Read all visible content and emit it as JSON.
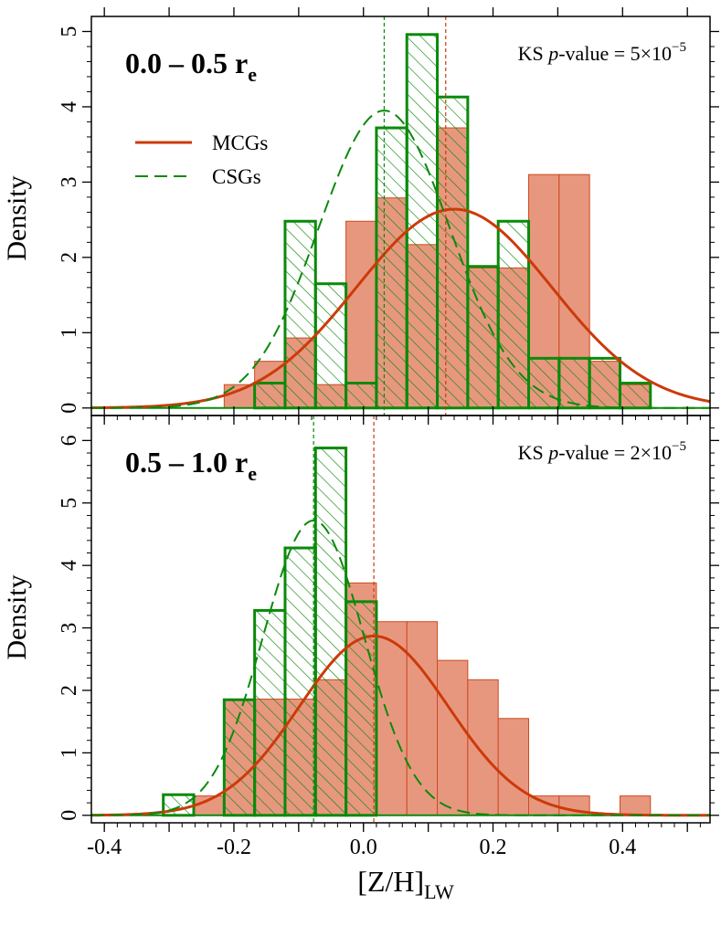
{
  "colors": {
    "mcg_fill": "#e8977f",
    "mcg_edge": "#cc4a1e",
    "mcg_curve": "#cc3a0a",
    "csg": "#0a8a0a"
  },
  "x_axis": {
    "label": "[Z/H]",
    "label_sub": "LW",
    "range": [
      -0.42,
      0.535
    ],
    "ticks": [
      -0.4,
      -0.2,
      0.0,
      0.2,
      0.4
    ],
    "tick_labels": [
      "-0.4",
      "-0.2",
      "0.0",
      "0.2",
      "0.4"
    ]
  },
  "legend": {
    "position": "upper-left",
    "entries": [
      {
        "label": "MCGs",
        "style": "solid"
      },
      {
        "label": "CSGs",
        "style": "dashed"
      }
    ]
  },
  "chart_data": [
    {
      "type": "histogram",
      "panel_title": "0.0 – 0.5 r",
      "panel_title_sub": "e",
      "ks_text": "KS ",
      "ks_p": "p",
      "ks_value": "-value = 5×10",
      "ks_exp": "−5",
      "ylabel": "Density",
      "ylim": [
        -0.1,
        5.2
      ],
      "yticks": [
        0,
        1,
        2,
        3,
        4,
        5
      ],
      "ytick_labels": [
        "0",
        "1",
        "2",
        "3",
        "4",
        "5"
      ],
      "bin_width": 0.047,
      "series": [
        {
          "name": "MCGs",
          "bin_start": -0.215,
          "values": [
            0.31,
            0.62,
            0.93,
            0.31,
            2.48,
            2.79,
            2.17,
            3.72,
            1.86,
            1.86,
            3.1,
            3.1,
            0.62,
            0.31
          ]
        },
        {
          "name": "CSGs",
          "bin_start": -0.168,
          "values": [
            0.33,
            2.48,
            1.65,
            0.33,
            3.72,
            4.96,
            4.13,
            1.88,
            2.48,
            0.66,
            0.66,
            0.66,
            0.33,
            0.0
          ]
        }
      ],
      "curves": [
        {
          "name": "MCGs",
          "mean": 0.14,
          "sigma": 0.151,
          "peak": 2.64
        },
        {
          "name": "CSGs",
          "mean": 0.032,
          "sigma": 0.101,
          "peak": 3.95
        }
      ],
      "medians": {
        "MCGs": 0.127,
        "CSGs": 0.032
      }
    },
    {
      "type": "histogram",
      "panel_title": "0.5 – 1.0 r",
      "panel_title_sub": "e",
      "ks_text": "KS ",
      "ks_p": "p",
      "ks_value": "-value = 2×10",
      "ks_exp": "−5",
      "ylabel": "Density",
      "ylim": [
        -0.12,
        6.4
      ],
      "yticks": [
        0,
        1,
        2,
        3,
        4,
        5,
        6
      ],
      "ytick_labels": [
        "0",
        "1",
        "2",
        "3",
        "4",
        "5",
        "6"
      ],
      "bin_width": 0.047,
      "series": [
        {
          "name": "MCGs",
          "bin_start": -0.262,
          "values": [
            0.31,
            1.86,
            1.86,
            1.86,
            2.17,
            3.72,
            3.1,
            3.1,
            2.48,
            2.17,
            1.55,
            0.31,
            0.31,
            0.0,
            0.31
          ]
        },
        {
          "name": "CSGs",
          "bin_start": -0.309,
          "values": [
            0.33,
            0.0,
            1.85,
            3.28,
            4.28,
            5.88,
            3.42,
            0.0,
            0.0,
            0.0,
            0.0,
            0.0
          ]
        }
      ],
      "curves": [
        {
          "name": "MCGs",
          "mean": 0.016,
          "sigma": 0.115,
          "peak": 2.87
        },
        {
          "name": "CSGs",
          "mean": -0.077,
          "sigma": 0.078,
          "peak": 4.72
        }
      ],
      "medians": {
        "MCGs": 0.016,
        "CSGs": -0.077
      }
    }
  ]
}
